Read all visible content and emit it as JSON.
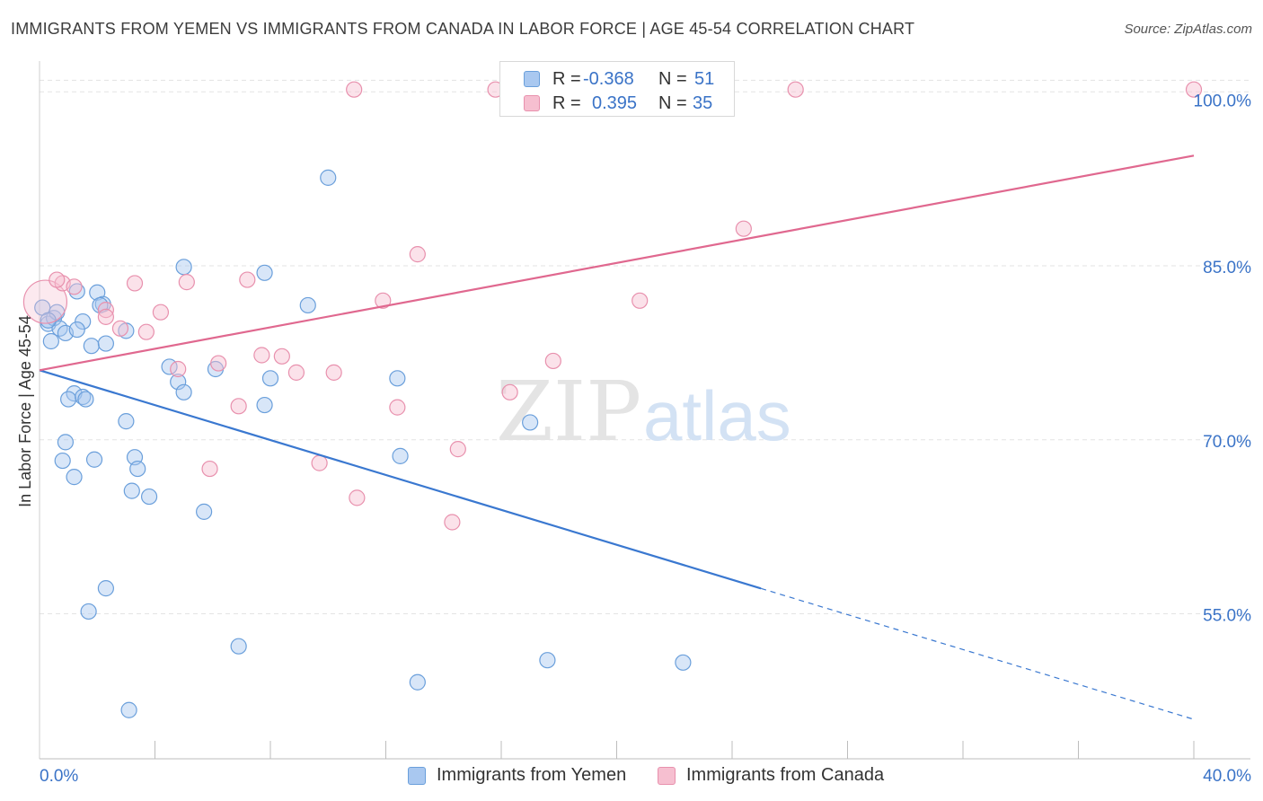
{
  "title": "IMMIGRANTS FROM YEMEN VS IMMIGRANTS FROM CANADA IN LABOR FORCE | AGE 45-54 CORRELATION CHART",
  "source": "Source: ZipAtlas.com",
  "watermark": {
    "zip": "ZIP",
    "atlas": "atlas"
  },
  "legend": {
    "rows": [
      {
        "r_label": "R =",
        "r_value": "-0.368",
        "n_label": "N =",
        "n_value": "51"
      },
      {
        "r_label": "R =",
        "r_value": "0.395",
        "n_label": "N =",
        "n_value": "35"
      }
    ]
  },
  "colors": {
    "yemen_fill": "#a9c8f0",
    "yemen_stroke": "#6a9fdb",
    "yemen_line": "#3a78d0",
    "canada_fill": "#f6bfd0",
    "canada_stroke": "#e890ad",
    "canada_line": "#e0688f",
    "tick_label": "#3a73c7",
    "grid": "#e3e3e3"
  },
  "chart_data": {
    "type": "scatter",
    "title": "IMMIGRANTS FROM YEMEN VS IMMIGRANTS FROM CANADA IN LABOR FORCE | AGE 45-54 CORRELATION CHART",
    "xlabel": "",
    "ylabel": "In Labor Force | Age 45-54",
    "xlim": [
      0,
      40
    ],
    "ylim": [
      42.5,
      102.5
    ],
    "x_tick_labels": [
      "0.0%",
      "40.0%"
    ],
    "y_ticks": [
      55,
      70,
      85,
      100
    ],
    "y_tick_labels": [
      "55.0%",
      "70.0%",
      "85.0%",
      "100.0%"
    ],
    "series": [
      {
        "name": "Immigrants from Yemen",
        "r": -0.368,
        "n": 51,
        "points": [
          [
            0.1,
            81.4
          ],
          [
            0.3,
            80.0
          ],
          [
            0.5,
            80.5
          ],
          [
            0.6,
            81.0
          ],
          [
            0.4,
            78.5
          ],
          [
            0.7,
            79.6
          ],
          [
            0.9,
            79.2
          ],
          [
            1.3,
            82.8
          ],
          [
            1.5,
            80.2
          ],
          [
            1.8,
            78.1
          ],
          [
            2.0,
            82.7
          ],
          [
            2.2,
            81.7
          ],
          [
            2.3,
            78.3
          ],
          [
            2.1,
            81.6
          ],
          [
            3.0,
            79.4
          ],
          [
            1.2,
            74.0
          ],
          [
            1.0,
            73.5
          ],
          [
            1.5,
            73.7
          ],
          [
            1.6,
            73.5
          ],
          [
            3.0,
            71.6
          ],
          [
            0.9,
            69.8
          ],
          [
            0.8,
            68.2
          ],
          [
            1.9,
            68.3
          ],
          [
            1.2,
            66.8
          ],
          [
            3.3,
            68.5
          ],
          [
            3.4,
            67.5
          ],
          [
            3.2,
            65.6
          ],
          [
            3.8,
            65.1
          ],
          [
            4.5,
            76.3
          ],
          [
            4.8,
            75.0
          ],
          [
            5.0,
            74.1
          ],
          [
            6.1,
            76.1
          ],
          [
            5.0,
            84.9
          ],
          [
            7.8,
            84.4
          ],
          [
            8.0,
            75.3
          ],
          [
            7.8,
            73.0
          ],
          [
            9.3,
            81.6
          ],
          [
            10.0,
            92.6
          ],
          [
            12.4,
            75.3
          ],
          [
            12.5,
            68.6
          ],
          [
            17.0,
            71.5
          ],
          [
            5.7,
            63.8
          ],
          [
            2.3,
            57.2
          ],
          [
            1.7,
            55.2
          ],
          [
            6.9,
            52.2
          ],
          [
            13.1,
            49.1
          ],
          [
            17.6,
            51.0
          ],
          [
            22.3,
            50.8
          ],
          [
            3.1,
            46.7
          ],
          [
            0.3,
            80.3
          ],
          [
            1.3,
            79.5
          ]
        ]
      },
      {
        "name": "Immigrants from Canada",
        "r": 0.395,
        "n": 35,
        "points": [
          [
            0.2,
            81.9
          ],
          [
            0.8,
            83.5
          ],
          [
            1.2,
            83.2
          ],
          [
            2.3,
            81.2
          ],
          [
            2.3,
            80.6
          ],
          [
            3.3,
            83.5
          ],
          [
            2.8,
            79.6
          ],
          [
            3.7,
            79.3
          ],
          [
            4.2,
            81.0
          ],
          [
            5.1,
            83.6
          ],
          [
            4.8,
            76.1
          ],
          [
            6.2,
            76.6
          ],
          [
            7.2,
            83.8
          ],
          [
            7.7,
            77.3
          ],
          [
            8.4,
            77.2
          ],
          [
            8.9,
            75.8
          ],
          [
            10.2,
            75.8
          ],
          [
            6.9,
            72.9
          ],
          [
            5.9,
            67.5
          ],
          [
            9.7,
            68.0
          ],
          [
            11.0,
            65.0
          ],
          [
            11.9,
            82.0
          ],
          [
            12.4,
            72.8
          ],
          [
            13.1,
            86.0
          ],
          [
            14.3,
            62.9
          ],
          [
            14.5,
            69.2
          ],
          [
            16.3,
            74.1
          ],
          [
            17.8,
            76.8
          ],
          [
            10.9,
            100.2
          ],
          [
            15.8,
            100.2
          ],
          [
            20.8,
            82.0
          ],
          [
            24.4,
            88.2
          ],
          [
            26.2,
            100.2
          ],
          [
            40.0,
            100.2
          ],
          [
            0.6,
            83.8
          ]
        ]
      }
    ],
    "trend_lines": [
      {
        "series": "Immigrants from Yemen",
        "x_start": 0,
        "y_start": 76.0,
        "x_solid_end": 25.0,
        "x_end": 40.0,
        "y_end": 45.9
      },
      {
        "series": "Immigrants from Canada",
        "x_start": 0,
        "y_start": 76.0,
        "x_end": 40.0,
        "y_end": 94.5
      }
    ]
  }
}
